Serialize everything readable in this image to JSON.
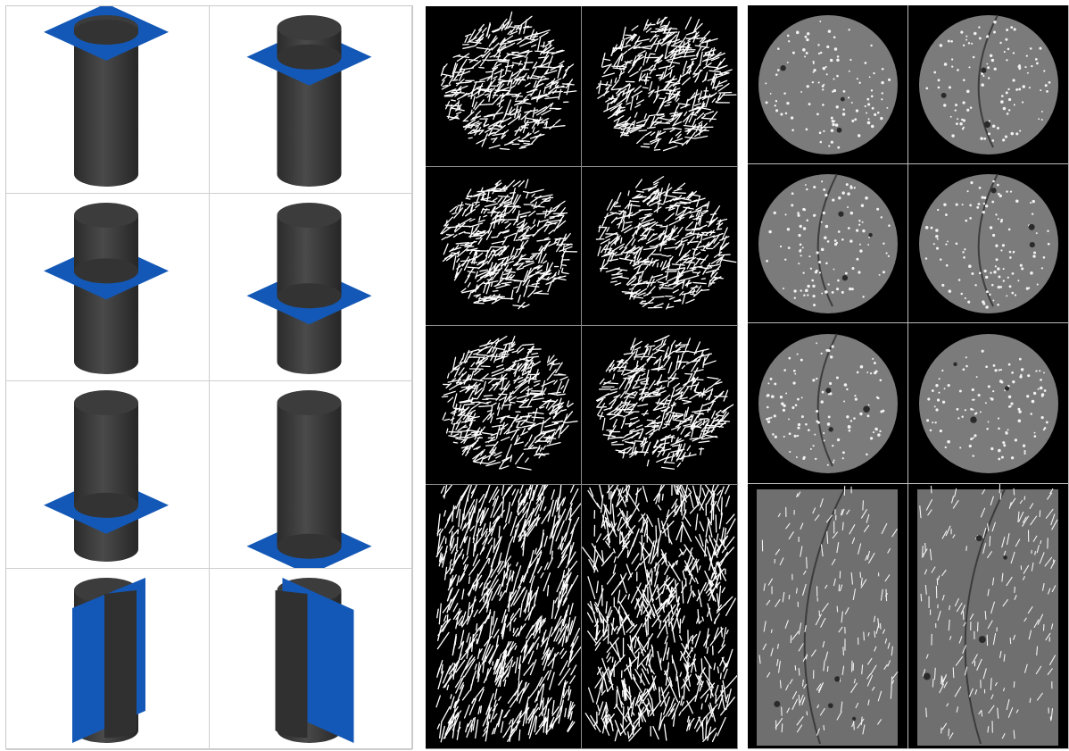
{
  "figure": {
    "panels": [
      {
        "id": "cutting-plane-schematics",
        "rows": 4,
        "cols": 2,
        "cylinder_color": "#3a3a3a",
        "plane_color": "#1358b6",
        "plane_cuts": [
          {
            "kind": "horizontal",
            "level": 0.97
          },
          {
            "kind": "horizontal",
            "level": 0.8
          },
          {
            "kind": "horizontal",
            "level": 0.62
          },
          {
            "kind": "horizontal",
            "level": 0.45
          },
          {
            "kind": "horizontal",
            "level": 0.3
          },
          {
            "kind": "horizontal",
            "level": 0.02
          },
          {
            "kind": "vertical",
            "orientation": "ascending"
          },
          {
            "kind": "vertical",
            "orientation": "descending"
          }
        ]
      },
      {
        "id": "segmented-fibre-slices",
        "rows": 4,
        "cols": 2,
        "background": "#000000",
        "fibre_color": "#ffffff"
      },
      {
        "id": "ct-greyscale-slices",
        "rows": 4,
        "cols": 2,
        "background": "#000000",
        "specimen_color": "#7b7b7b",
        "fibre_color": "#f2f2f2"
      }
    ]
  }
}
